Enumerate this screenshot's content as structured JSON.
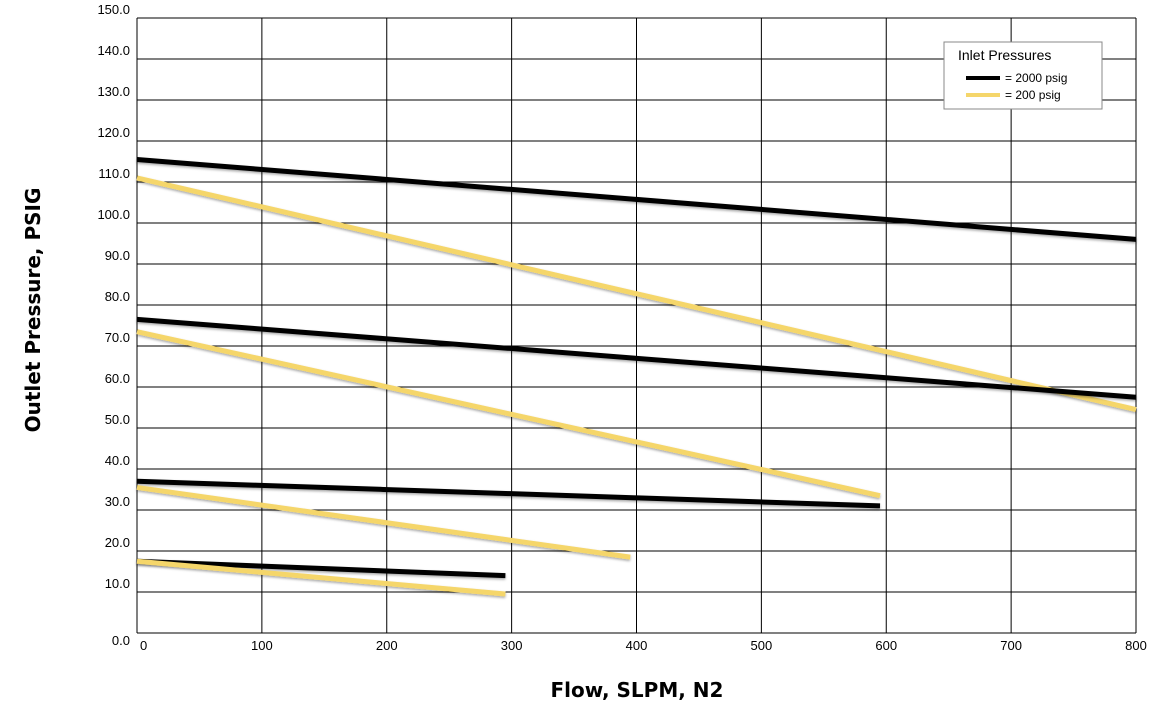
{
  "chart_data": {
    "type": "line",
    "xlabel": "Flow, SLPM, N2",
    "ylabel": "Outlet Pressure, PSIG",
    "xlim": [
      0,
      800
    ],
    "ylim": [
      0,
      150
    ],
    "x_ticks": [
      "0",
      "100",
      "200",
      "300",
      "400",
      "500",
      "600",
      "700",
      "800"
    ],
    "y_ticks": [
      "0.0",
      "10.0",
      "20.0",
      "30.0",
      "40.0",
      "50.0",
      "60.0",
      "70.0",
      "80.0",
      "90.0",
      "100.0",
      "110.0",
      "120.0",
      "130.0",
      "140.0",
      "150.0"
    ],
    "grid": true,
    "legend": {
      "title": "Inlet Pressures",
      "placement": "top-right",
      "entries": [
        {
          "label": "= 2000 psig",
          "color": "#000000"
        },
        {
          "label": "= 200 psig",
          "color": "#f5d66b"
        }
      ]
    },
    "series": [
      {
        "inlet": "2000 psig",
        "color": "#000000",
        "points": [
          [
            0,
            115.5
          ],
          [
            800,
            96
          ]
        ]
      },
      {
        "inlet": "200 psig",
        "color": "#f5d66b",
        "points": [
          [
            0,
            111
          ],
          [
            800,
            54.5
          ]
        ]
      },
      {
        "inlet": "2000 psig",
        "color": "#000000",
        "points": [
          [
            0,
            76.5
          ],
          [
            800,
            57.5
          ]
        ]
      },
      {
        "inlet": "200 psig",
        "color": "#f5d66b",
        "points": [
          [
            0,
            73.5
          ],
          [
            595,
            33.5
          ]
        ]
      },
      {
        "inlet": "2000 psig",
        "color": "#000000",
        "points": [
          [
            0,
            37
          ],
          [
            595,
            31
          ]
        ]
      },
      {
        "inlet": "200 psig",
        "color": "#f5d66b",
        "points": [
          [
            0,
            35.5
          ],
          [
            395,
            18.5
          ]
        ]
      },
      {
        "inlet": "2000 psig",
        "color": "#000000",
        "points": [
          [
            0,
            17.5
          ],
          [
            295,
            14
          ]
        ]
      },
      {
        "inlet": "200 psig",
        "color": "#f5d66b",
        "points": [
          [
            0,
            17.5
          ],
          [
            295,
            9.5
          ]
        ]
      }
    ]
  }
}
